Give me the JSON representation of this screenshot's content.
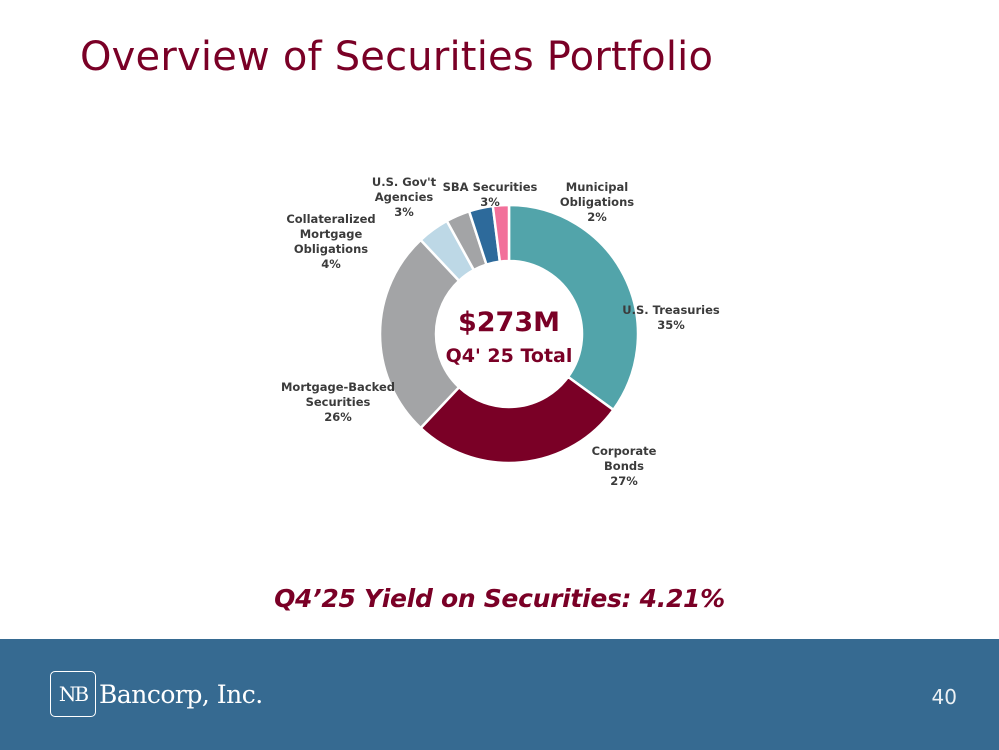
{
  "title": "Overview of Securities Portfolio",
  "chart_data": {
    "type": "pie",
    "subtype": "donut",
    "center_amount": "$273M",
    "center_label": "Q4' 25 Total",
    "slices": [
      {
        "name": "U.S. Treasuries",
        "label_lines": [
          "U.S. Treasuries"
        ],
        "pct_label": "35%",
        "value": 35,
        "color": "#52a4aa"
      },
      {
        "name": "Corporate Bonds",
        "label_lines": [
          "Corporate",
          "Bonds"
        ],
        "pct_label": "27%",
        "value": 27,
        "color": "#7a0026"
      },
      {
        "name": "Mortgage-Backed Securities",
        "label_lines": [
          "Mortgage-Backed",
          "Securities"
        ],
        "pct_label": "26%",
        "value": 26,
        "color": "#a3a4a6"
      },
      {
        "name": "Collateralized Mortgage Obligations",
        "label_lines": [
          "Collateralized",
          "Mortgage",
          "Obligations"
        ],
        "pct_label": "4%",
        "value": 4,
        "color": "#bdd8e6"
      },
      {
        "name": "U.S. Gov't Agencies",
        "label_lines": [
          "U.S. Gov't",
          "Agencies"
        ],
        "pct_label": "3%",
        "value": 3,
        "color": "#a3a4a6"
      },
      {
        "name": "SBA Securities",
        "label_lines": [
          "SBA Securities"
        ],
        "pct_label": "3%",
        "value": 3,
        "color": "#2d6a9b"
      },
      {
        "name": "Municipal Obligations",
        "label_lines": [
          "Municipal",
          "Obligations"
        ],
        "pct_label": "2%",
        "value": 2,
        "color": "#f2709a"
      }
    ]
  },
  "yield_text": "Q4’25 Yield on Securities: 4.21%",
  "footer": {
    "logo_mark": "NB",
    "logo_text": "Bancorp, Inc.",
    "page_number": "40"
  }
}
